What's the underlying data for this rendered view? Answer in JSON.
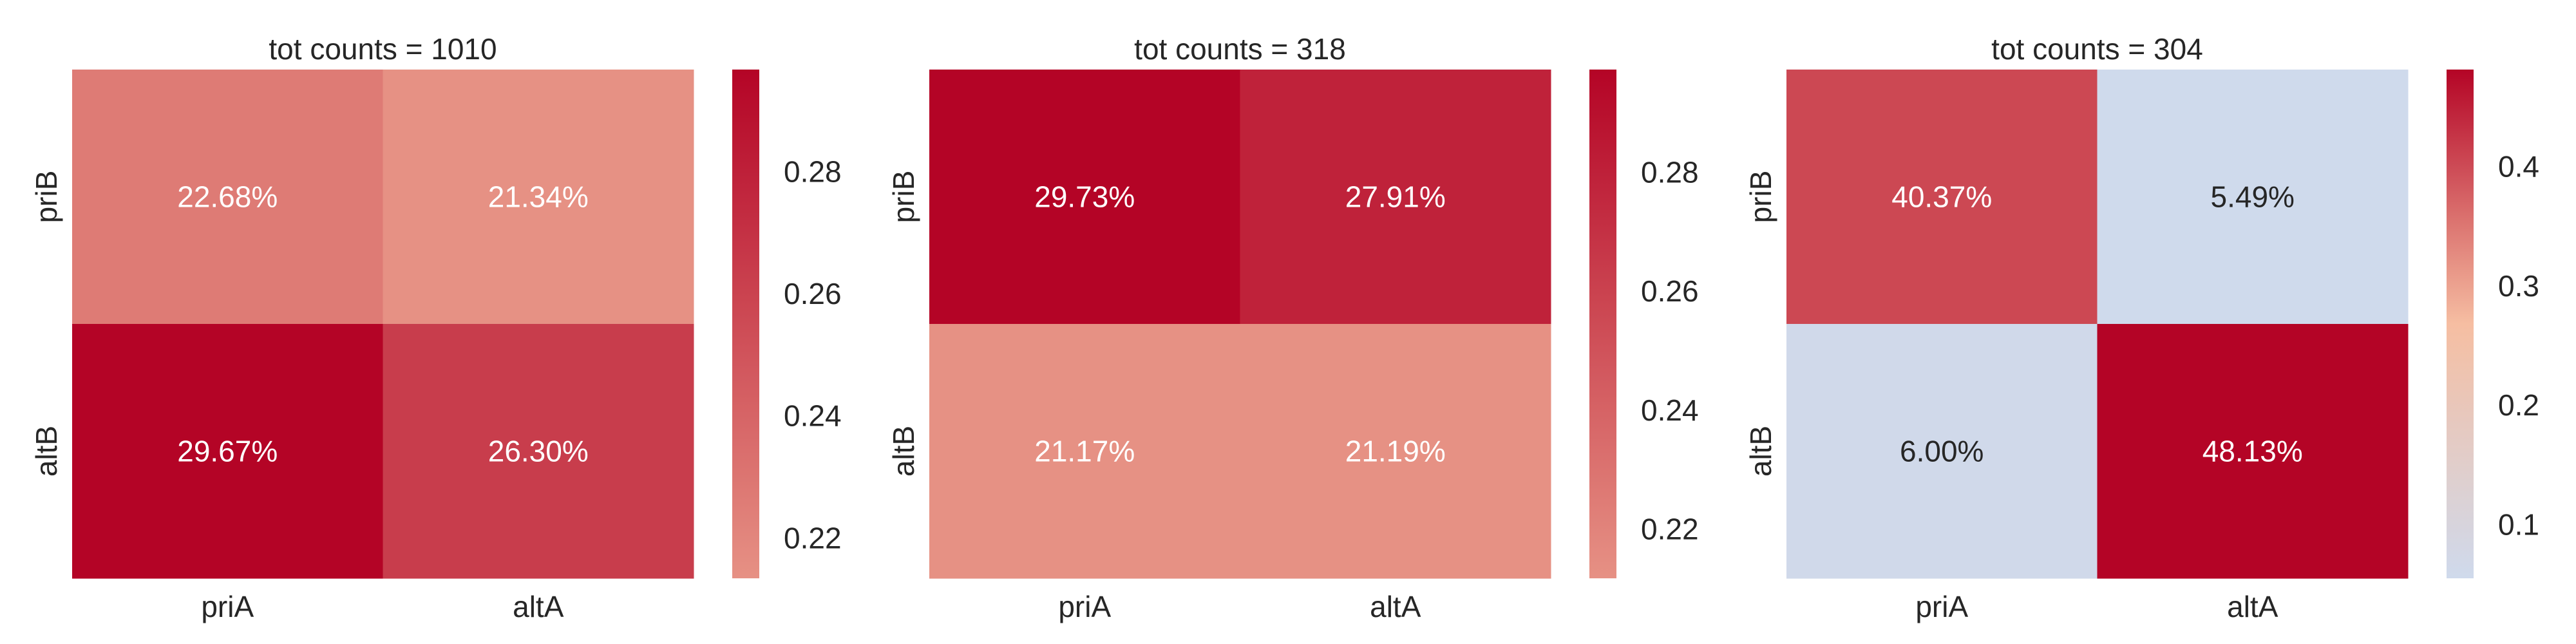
{
  "chart_data": [
    {
      "type": "heatmap",
      "title": "tot counts = 1010",
      "x_categories": [
        "priA",
        "altA"
      ],
      "y_categories": [
        "priB",
        "altB"
      ],
      "values": [
        [
          22.68,
          21.34
        ],
        [
          29.67,
          26.3
        ]
      ],
      "cell_labels": [
        [
          "22.68%",
          "21.34%"
        ],
        [
          "29.67%",
          "26.30%"
        ]
      ],
      "colorbar": {
        "range": [
          0.2134,
          0.2967
        ],
        "ticks": [
          0.22,
          0.24,
          0.26,
          0.28
        ],
        "tick_labels": [
          "0.22",
          "0.24",
          "0.26",
          "0.28"
        ]
      },
      "grid": false
    },
    {
      "type": "heatmap",
      "title": "tot counts = 318",
      "x_categories": [
        "priA",
        "altA"
      ],
      "y_categories": [
        "priB",
        "altB"
      ],
      "values": [
        [
          29.73,
          27.91
        ],
        [
          21.17,
          21.19
        ]
      ],
      "cell_labels": [
        [
          "29.73%",
          "27.91%"
        ],
        [
          "21.17%",
          "21.19%"
        ]
      ],
      "colorbar": {
        "range": [
          0.2117,
          0.2973
        ],
        "ticks": [
          0.22,
          0.24,
          0.26,
          0.28
        ],
        "tick_labels": [
          "0.22",
          "0.24",
          "0.26",
          "0.28"
        ]
      },
      "grid": false
    },
    {
      "type": "heatmap",
      "title": "tot counts = 304",
      "x_categories": [
        "priA",
        "altA"
      ],
      "y_categories": [
        "priB",
        "altB"
      ],
      "values": [
        [
          40.37,
          5.49
        ],
        [
          6.0,
          48.13
        ]
      ],
      "cell_labels": [
        [
          "40.37%",
          "5.49%"
        ],
        [
          "6.00%",
          "48.13%"
        ]
      ],
      "colorbar": {
        "range": [
          0.0549,
          0.4813
        ],
        "ticks": [
          0.1,
          0.2,
          0.3,
          0.4
        ],
        "tick_labels": [
          "0.1",
          "0.2",
          "0.3",
          "0.4"
        ]
      },
      "grid": false
    }
  ],
  "colors": {
    "low": "#cfdaec",
    "mid": "#f6bea2",
    "high": "#b40426",
    "text_light": "#ffffff",
    "text_dark": "#262626"
  }
}
